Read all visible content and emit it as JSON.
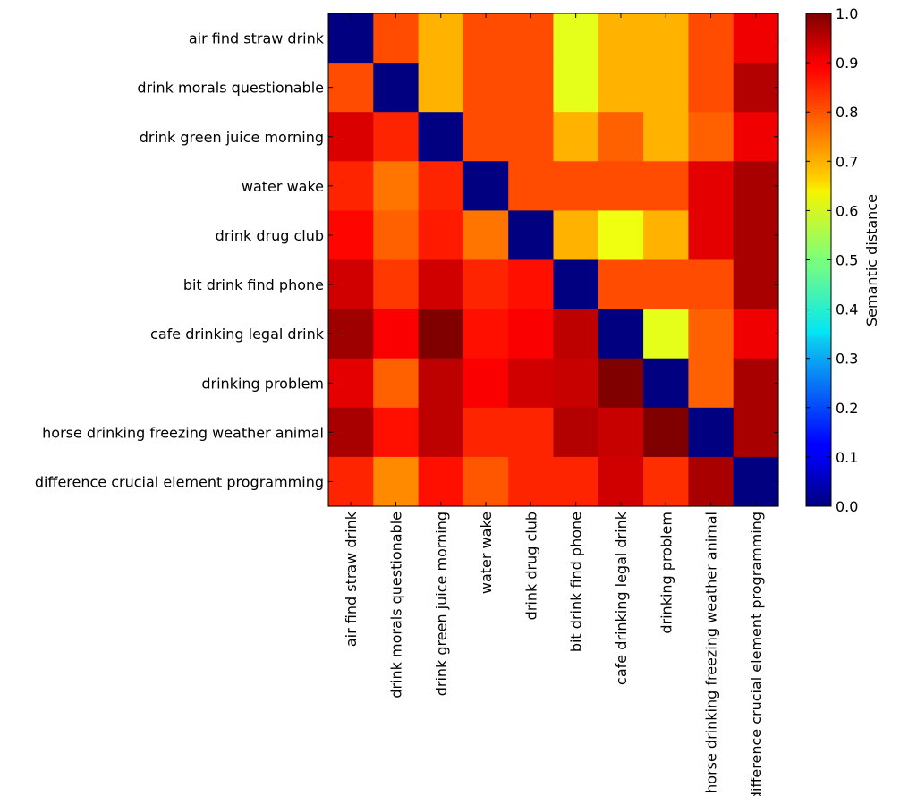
{
  "chart_data": {
    "type": "heatmap",
    "labels": [
      "air find straw drink",
      "drink morals questionable",
      "drink green juice morning",
      "water wake",
      "drink drug club",
      "bit drink find phone",
      "cafe drinking legal drink",
      "drinking problem",
      "horse drinking freezing weather animal",
      "difference crucial element programming"
    ],
    "matrix": [
      [
        0.0,
        0.8,
        0.7,
        0.8,
        0.8,
        0.6,
        0.7,
        0.7,
        0.8,
        0.89
      ],
      [
        0.8,
        0.0,
        0.7,
        0.8,
        0.8,
        0.6,
        0.7,
        0.7,
        0.8,
        0.95
      ],
      [
        0.91,
        0.84,
        0.0,
        0.8,
        0.8,
        0.7,
        0.78,
        0.7,
        0.78,
        0.89
      ],
      [
        0.84,
        0.76,
        0.84,
        0.0,
        0.8,
        0.8,
        0.8,
        0.8,
        0.9,
        0.96
      ],
      [
        0.87,
        0.78,
        0.85,
        0.76,
        0.0,
        0.7,
        0.61,
        0.7,
        0.9,
        0.96
      ],
      [
        0.92,
        0.82,
        0.92,
        0.84,
        0.86,
        0.0,
        0.8,
        0.8,
        0.8,
        0.96
      ],
      [
        0.97,
        0.88,
        1.0,
        0.86,
        0.88,
        0.94,
        0.0,
        0.6,
        0.78,
        0.89
      ],
      [
        0.9,
        0.78,
        0.94,
        0.88,
        0.92,
        0.93,
        1.0,
        0.0,
        0.78,
        0.96
      ],
      [
        0.96,
        0.86,
        0.94,
        0.84,
        0.84,
        0.95,
        0.93,
        1.0,
        0.0,
        0.96
      ],
      [
        0.84,
        0.74,
        0.86,
        0.79,
        0.84,
        0.84,
        0.92,
        0.83,
        0.96,
        0.0
      ]
    ],
    "colorbar": {
      "label": "Semantic distance",
      "min": 0.0,
      "max": 1.0,
      "ticks": [
        "0.0",
        "0.1",
        "0.2",
        "0.3",
        "0.4",
        "0.5",
        "0.6",
        "0.7",
        "0.8",
        "0.9",
        "1.0"
      ],
      "colormap": "jet"
    }
  }
}
